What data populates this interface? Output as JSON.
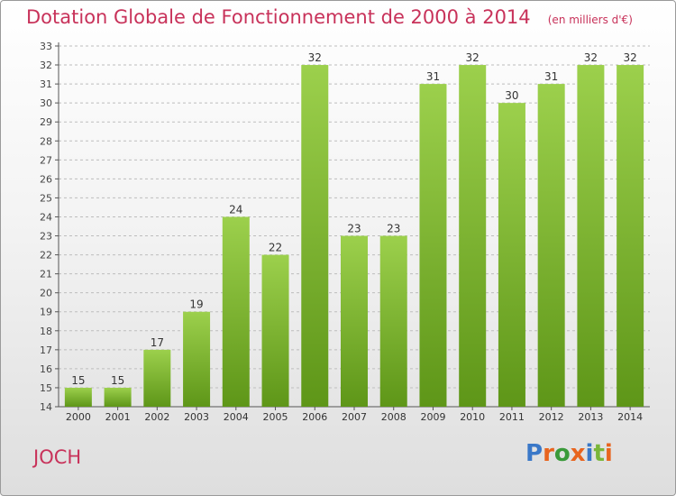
{
  "header": {
    "title": "Dotation Globale de Fonctionnement de 2000 à 2014",
    "subtitle": "(en milliers d'€)"
  },
  "commune": "JOCH",
  "logo": {
    "text": "Proxiti",
    "letter_colors": [
      "#3a78c8",
      "#e8641e",
      "#3a9a3a",
      "#e8641e",
      "#3a78c8",
      "#7ab63a",
      "#e8641e"
    ]
  },
  "colors": {
    "title": "#c8325a",
    "bar_light": "#9cd04c",
    "bar_dark": "#5e9618"
  },
  "chart_data": {
    "type": "bar",
    "categories": [
      "2000",
      "2001",
      "2002",
      "2003",
      "2004",
      "2005",
      "2006",
      "2007",
      "2008",
      "2009",
      "2010",
      "2011",
      "2012",
      "2013",
      "2014"
    ],
    "values": [
      15,
      15,
      17,
      19,
      24,
      22,
      32,
      23,
      23,
      31,
      32,
      30,
      31,
      32,
      32
    ],
    "title": "Dotation Globale de Fonctionnement de 2000 à 2014",
    "subtitle": "(en milliers d'€)",
    "xlabel": "",
    "ylabel": "",
    "ylim": [
      14,
      33
    ],
    "yticks": [
      14,
      15,
      16,
      17,
      18,
      19,
      20,
      21,
      22,
      23,
      24,
      25,
      26,
      27,
      28,
      29,
      30,
      31,
      32,
      33
    ],
    "grid": true,
    "legend": "none"
  }
}
